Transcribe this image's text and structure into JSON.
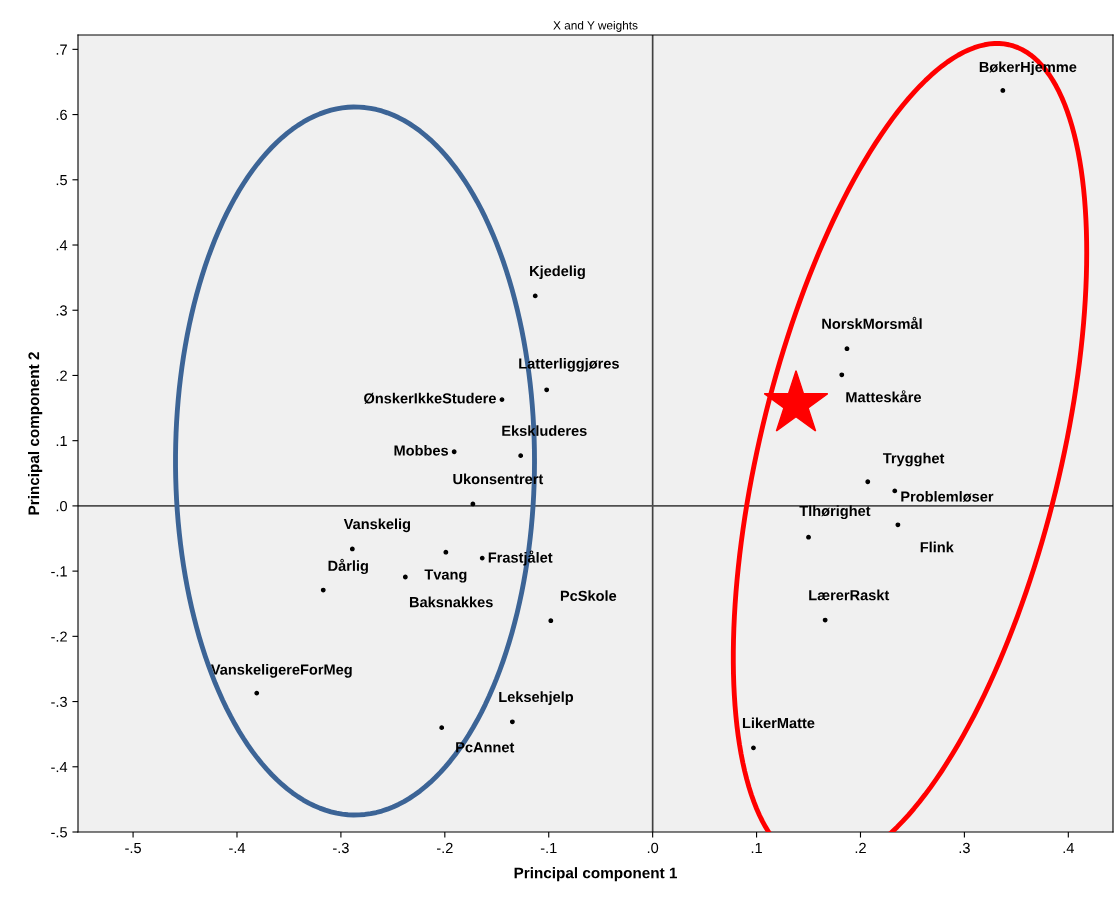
{
  "chart_data": {
    "type": "scatter",
    "title": "X and Y weights",
    "xlabel": "Principal component 1",
    "ylabel": "Principal component 2",
    "x": [
      -0.113,
      -0.102,
      -0.145,
      -0.127,
      -0.191,
      -0.173,
      -0.289,
      -0.199,
      -0.164,
      -0.238,
      -0.317,
      -0.098,
      -0.381,
      -0.135,
      -0.203,
      0.337,
      0.187,
      0.182,
      0.207,
      0.233,
      0.15,
      0.236,
      0.166,
      0.097
    ],
    "series": [
      {
        "color": "#000000",
        "values": [
          0.322,
          0.178,
          0.163,
          0.077,
          0.083,
          0.003,
          -0.066,
          -0.071,
          -0.08,
          -0.109,
          -0.129,
          -0.176,
          -0.287,
          -0.331,
          -0.34,
          0.637,
          0.241,
          0.201,
          0.037,
          0.023,
          -0.048,
          -0.029,
          -0.175,
          -0.371
        ]
      }
    ],
    "annotations": [
      {
        "text": "Kjedelig",
        "x": -0.113,
        "y": 0.322
      },
      {
        "text": "Latterliggjøres",
        "x": -0.102,
        "y": 0.178
      },
      {
        "text": "ØnskerIkkeStudere",
        "x": -0.145,
        "y": 0.163
      },
      {
        "text": "Ekskluderes",
        "x": -0.127,
        "y": 0.077
      },
      {
        "text": "Mobbes",
        "x": -0.191,
        "y": 0.083
      },
      {
        "text": "Ukonsentrert",
        "x": -0.173,
        "y": 0.003
      },
      {
        "text": "Vanskelig",
        "x": -0.289,
        "y": -0.066
      },
      {
        "text": "Tvang",
        "x": -0.199,
        "y": -0.071
      },
      {
        "text": "Frastjålet",
        "x": -0.164,
        "y": -0.08
      },
      {
        "text": "Baksnakkes",
        "x": -0.238,
        "y": -0.109
      },
      {
        "text": "Dårlig",
        "x": -0.317,
        "y": -0.129
      },
      {
        "text": "PcSkole",
        "x": -0.098,
        "y": -0.176
      },
      {
        "text": "VanskeligereForMeg",
        "x": -0.381,
        "y": -0.287
      },
      {
        "text": "Leksehjelp",
        "x": -0.135,
        "y": -0.331
      },
      {
        "text": "PcAnnet",
        "x": -0.203,
        "y": -0.34
      },
      {
        "text": "BøkerHjemme",
        "x": 0.337,
        "y": 0.637
      },
      {
        "text": "NorskMorsmål",
        "x": 0.187,
        "y": 0.241
      },
      {
        "text": "Matteskåre",
        "x": 0.182,
        "y": 0.201
      },
      {
        "text": "Trygghet",
        "x": 0.207,
        "y": 0.037
      },
      {
        "text": "Problemløser",
        "x": 0.233,
        "y": 0.023
      },
      {
        "text": "Tlhørighet",
        "x": 0.15,
        "y": -0.048
      },
      {
        "text": "Flink",
        "x": 0.236,
        "y": -0.029
      },
      {
        "text": "LærerRaskt",
        "x": 0.166,
        "y": -0.175
      },
      {
        "text": "LikerMatte",
        "x": 0.097,
        "y": -0.371
      }
    ],
    "xlim": [
      -0.553,
      0.443
    ],
    "ylim": [
      -0.5,
      0.722
    ],
    "xticks": [
      {
        "value": -0.5,
        "label": "-.5"
      },
      {
        "value": -0.4,
        "label": "-.4"
      },
      {
        "value": -0.3,
        "label": "-.3"
      },
      {
        "value": -0.2,
        "label": "-.2"
      },
      {
        "value": -0.1,
        "label": "-.1"
      },
      {
        "value": 0.0,
        "label": ".0"
      },
      {
        "value": 0.1,
        "label": ".1"
      },
      {
        "value": 0.2,
        "label": ".2"
      },
      {
        "value": 0.3,
        "label": ".3"
      },
      {
        "value": 0.4,
        "label": ".4"
      }
    ],
    "yticks": [
      {
        "value": -0.5,
        "label": "-.5"
      },
      {
        "value": -0.4,
        "label": "-.4"
      },
      {
        "value": -0.3,
        "label": "-.3"
      },
      {
        "value": -0.2,
        "label": "-.2"
      },
      {
        "value": -0.1,
        "label": "-.1"
      },
      {
        "value": 0.0,
        "label": ".0"
      },
      {
        "value": 0.1,
        "label": ".1"
      },
      {
        "value": 0.2,
        "label": ".2"
      },
      {
        "value": 0.3,
        "label": ".3"
      },
      {
        "value": 0.4,
        "label": ".4"
      },
      {
        "value": 0.5,
        "label": ".5"
      },
      {
        "value": 0.6,
        "label": ".6"
      },
      {
        "value": 0.7,
        "label": ".7"
      }
    ],
    "ref_lines": [
      {
        "axis": "x",
        "value": 0.0,
        "color": "#404040"
      },
      {
        "axis": "y",
        "value": 0.0,
        "color": "#505050"
      }
    ],
    "marker": "circle",
    "grid": false,
    "legend": false
  }
}
